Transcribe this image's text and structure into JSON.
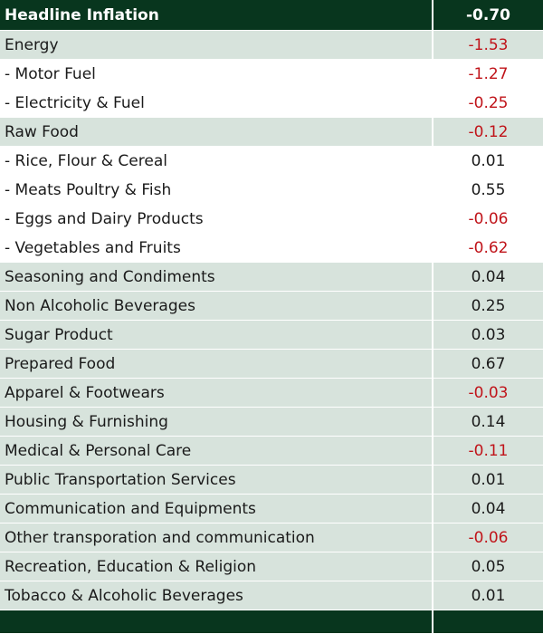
{
  "header": {
    "label": "Headline Inflation",
    "value": "-0.70"
  },
  "rows": [
    {
      "label": "Energy",
      "value": "-1.53",
      "negative": true,
      "shaded": true
    },
    {
      "label": "- Motor Fuel",
      "value": "-1.27",
      "negative": true,
      "shaded": false
    },
    {
      "label": "- Electricity & Fuel",
      "value": "-0.25",
      "negative": true,
      "shaded": false
    },
    {
      "label": "Raw Food",
      "value": "-0.12",
      "negative": true,
      "shaded": true
    },
    {
      "label": "- Rice, Flour & Cereal",
      "value": "0.01",
      "negative": false,
      "shaded": false
    },
    {
      "label": "- Meats Poultry & Fish",
      "value": "0.55",
      "negative": false,
      "shaded": false
    },
    {
      "label": "- Eggs and Dairy Products",
      "value": "-0.06",
      "negative": true,
      "shaded": false
    },
    {
      "label": "- Vegetables and Fruits",
      "value": "-0.62",
      "negative": true,
      "shaded": false
    },
    {
      "label": "Seasoning and Condiments",
      "value": "0.04",
      "negative": false,
      "shaded": true
    },
    {
      "label": "Non Alcoholic Beverages",
      "value": "0.25",
      "negative": false,
      "shaded": true
    },
    {
      "label": "Sugar Product",
      "value": "0.03",
      "negative": false,
      "shaded": true
    },
    {
      "label": "Prepared Food",
      "value": "0.67",
      "negative": false,
      "shaded": true
    },
    {
      "label": "Apparel & Footwears",
      "value": "-0.03",
      "negative": true,
      "shaded": true
    },
    {
      "label": "Housing & Furnishing",
      "value": "0.14",
      "negative": false,
      "shaded": true
    },
    {
      "label": "Medical & Personal Care",
      "value": "-0.11",
      "negative": true,
      "shaded": true
    },
    {
      "label": "Public Transportation Services",
      "value": "0.01",
      "negative": false,
      "shaded": true
    },
    {
      "label": "Communication and Equipments",
      "value": "0.04",
      "negative": false,
      "shaded": true
    },
    {
      "label": "Other transporation and communication",
      "value": "-0.06",
      "negative": true,
      "shaded": true
    },
    {
      "label": "Recreation, Education & Religion",
      "value": "0.05",
      "negative": false,
      "shaded": true
    },
    {
      "label": "Tobacco & Alcoholic Beverages",
      "value": "0.01",
      "negative": false,
      "shaded": true
    }
  ],
  "colors": {
    "header_bg": "#08361e",
    "shaded_bg": "#d7e3dc",
    "negative_text": "#c0141a",
    "positive_text": "#1a1a1a"
  }
}
